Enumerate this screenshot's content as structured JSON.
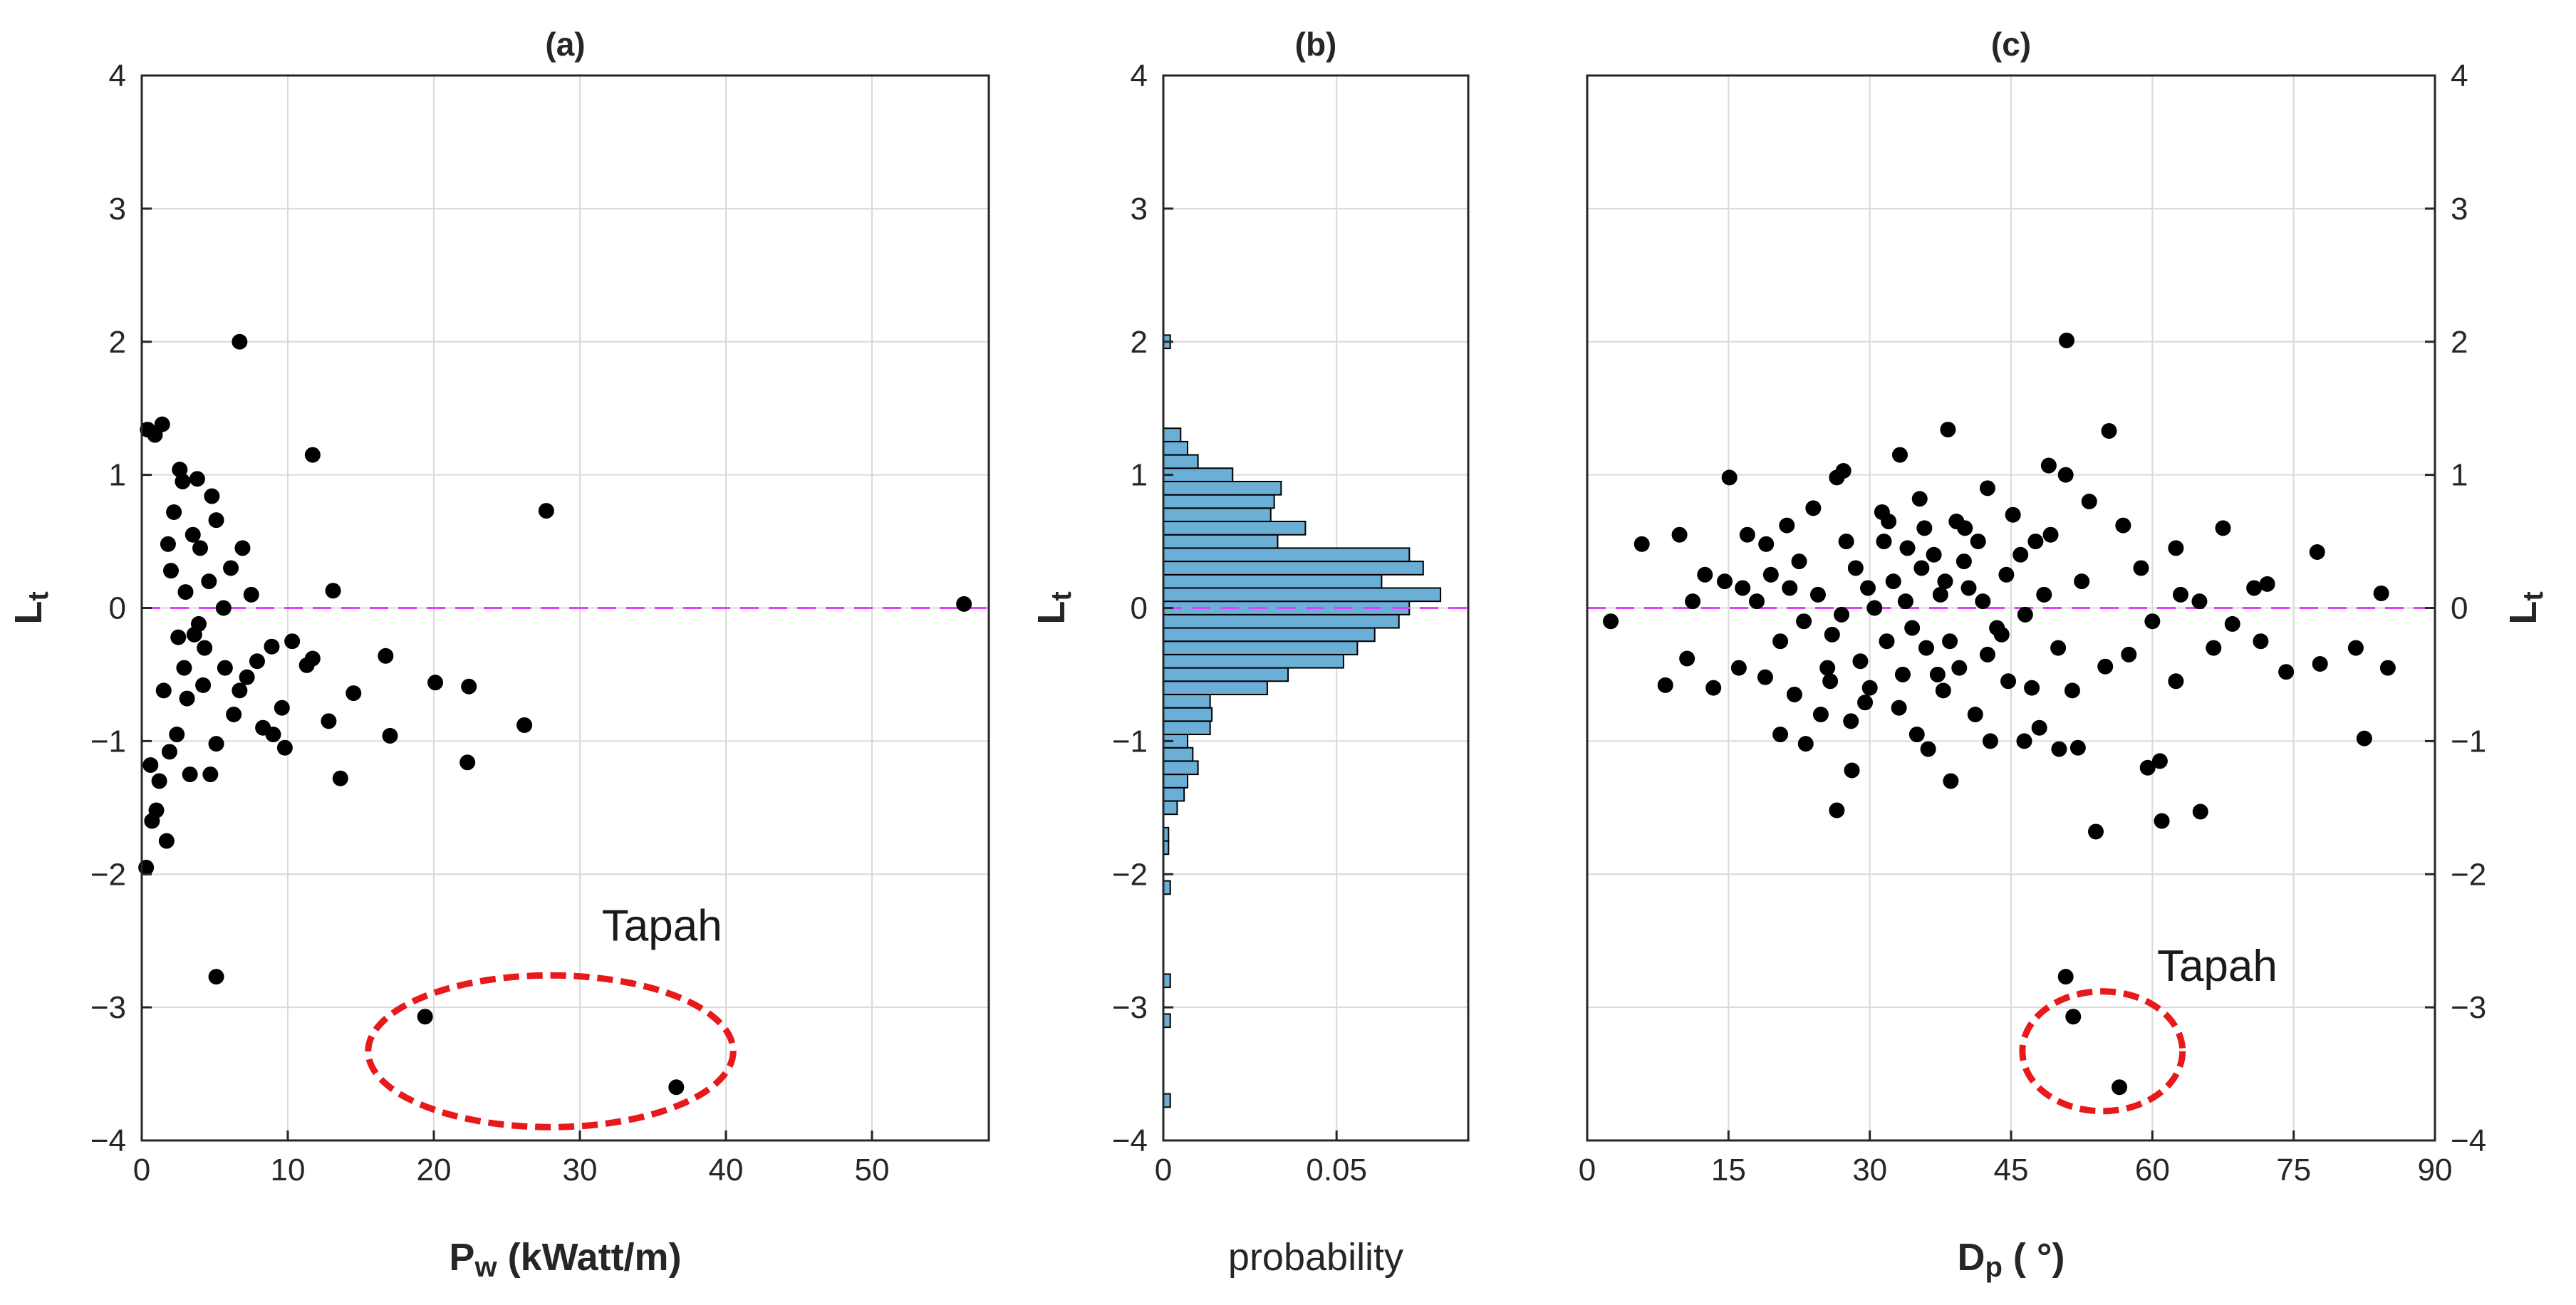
{
  "chart_data": [
    {
      "type": "scatter",
      "title": "(a)",
      "xlabel_main": "P",
      "xlabel_sub": "w",
      "xlabel_rest": " (kWatt/m)",
      "ylabel_main": "L",
      "ylabel_sub": "t",
      "xlim": [
        0,
        58
      ],
      "ylim": [
        -4,
        4
      ],
      "xticks": [
        0,
        10,
        20,
        30,
        40,
        50
      ],
      "yticks": [
        -4,
        -3,
        -2,
        -1,
        0,
        1,
        2,
        3,
        4
      ],
      "grid": true,
      "reference_line": {
        "y": 0,
        "color": "#e040fb",
        "style": "dashed"
      },
      "annotation": {
        "text": "Tapah",
        "x": 31.5,
        "y": -2.5,
        "ellipse_center": [
          28,
          -3.33
        ],
        "ellipse_radius": [
          12.5,
          0.57
        ],
        "color": "#e8191b"
      },
      "points": [
        [
          6.7,
          2.0
        ],
        [
          11.7,
          1.15
        ],
        [
          27.7,
          0.73
        ],
        [
          56.3,
          0.03
        ],
        [
          13.1,
          0.13
        ],
        [
          7.5,
          0.1
        ],
        [
          10.3,
          -0.25
        ],
        [
          8.9,
          -0.29
        ],
        [
          11.7,
          -0.38
        ],
        [
          11.3,
          -0.43
        ],
        [
          16.7,
          -0.36
        ],
        [
          20.1,
          -0.56
        ],
        [
          22.4,
          -0.59
        ],
        [
          14.5,
          -0.64
        ],
        [
          12.8,
          -0.85
        ],
        [
          26.2,
          -0.88
        ],
        [
          9.0,
          -0.95
        ],
        [
          9.6,
          -0.75
        ],
        [
          9.8,
          -1.05
        ],
        [
          17.0,
          -0.96
        ],
        [
          13.6,
          -1.28
        ],
        [
          22.3,
          -1.16
        ],
        [
          5.1,
          -2.77
        ],
        [
          19.4,
          -3.07
        ],
        [
          36.6,
          -3.6
        ],
        [
          0.3,
          -1.95
        ],
        [
          0.7,
          -1.6
        ],
        [
          1.7,
          -1.75
        ],
        [
          1.2,
          -1.3
        ],
        [
          3.3,
          -1.25
        ],
        [
          4.7,
          -1.25
        ],
        [
          5.1,
          -1.02
        ],
        [
          6.3,
          -0.8
        ],
        [
          7.2,
          -0.52
        ],
        [
          5.7,
          -0.45
        ],
        [
          4.3,
          -0.3
        ],
        [
          3.9,
          -0.12
        ],
        [
          6.1,
          0.3
        ],
        [
          5.1,
          0.66
        ],
        [
          4.8,
          0.84
        ],
        [
          3.8,
          0.97
        ],
        [
          2.6,
          1.04
        ],
        [
          1.4,
          1.38
        ],
        [
          0.4,
          1.34
        ],
        [
          0.9,
          1.3
        ],
        [
          6.9,
          0.45
        ],
        [
          8.3,
          -0.9
        ],
        [
          3.1,
          -0.68
        ],
        [
          1.9,
          -1.08
        ],
        [
          2.4,
          -0.95
        ],
        [
          4.2,
          -0.58
        ],
        [
          6.7,
          -0.62
        ],
        [
          7.9,
          -0.4
        ],
        [
          5.6,
          0.0
        ],
        [
          4.6,
          0.2
        ],
        [
          3.5,
          0.55
        ],
        [
          2.2,
          0.72
        ],
        [
          2.9,
          -0.45
        ],
        [
          3.6,
          -0.2
        ],
        [
          2.0,
          0.28
        ],
        [
          1.5,
          -0.62
        ],
        [
          2.8,
          0.95
        ],
        [
          1.0,
          -1.52
        ],
        [
          0.6,
          -1.18
        ],
        [
          4.0,
          0.45
        ],
        [
          3.0,
          0.12
        ],
        [
          2.5,
          -0.22
        ],
        [
          1.8,
          0.48
        ]
      ]
    },
    {
      "type": "histogram",
      "orientation": "horizontal",
      "title": "(b)",
      "xlabel": "probability",
      "ylabel_main": "L",
      "ylabel_sub": "t",
      "xlim": [
        0,
        0.088
      ],
      "ylim": [
        -4,
        4
      ],
      "xticks": [
        0,
        0.05
      ],
      "xtick_labels": [
        "0",
        "0.05"
      ],
      "yticks": [
        -4,
        -3,
        -2,
        -1,
        0,
        1,
        2,
        3,
        4
      ],
      "grid": true,
      "bin_width": 0.1,
      "bar_color": "#6baed6",
      "reference_line": {
        "y": 0,
        "color": "#e040fb",
        "style": "dashed"
      },
      "bins": [
        [
          -3.7,
          0.002
        ],
        [
          -3.1,
          0.002
        ],
        [
          -2.8,
          0.002
        ],
        [
          -2.1,
          0.002
        ],
        [
          -1.8,
          0.0015
        ],
        [
          -1.7,
          0.0015
        ],
        [
          -1.5,
          0.004
        ],
        [
          -1.4,
          0.006
        ],
        [
          -1.3,
          0.007
        ],
        [
          -1.2,
          0.01
        ],
        [
          -1.1,
          0.0085
        ],
        [
          -1.0,
          0.007
        ],
        [
          -0.9,
          0.0135
        ],
        [
          -0.8,
          0.014
        ],
        [
          -0.7,
          0.0135
        ],
        [
          -0.6,
          0.03
        ],
        [
          -0.5,
          0.036
        ],
        [
          -0.4,
          0.052
        ],
        [
          -0.3,
          0.056
        ],
        [
          -0.2,
          0.061
        ],
        [
          -0.1,
          0.068
        ],
        [
          0.0,
          0.071
        ],
        [
          0.1,
          0.08
        ],
        [
          0.2,
          0.063
        ],
        [
          0.3,
          0.075
        ],
        [
          0.4,
          0.071
        ],
        [
          0.5,
          0.033
        ],
        [
          0.6,
          0.041
        ],
        [
          0.7,
          0.031
        ],
        [
          0.8,
          0.032
        ],
        [
          0.9,
          0.034
        ],
        [
          1.0,
          0.02
        ],
        [
          1.1,
          0.01
        ],
        [
          1.2,
          0.007
        ],
        [
          1.3,
          0.005
        ],
        [
          2.0,
          0.002
        ]
      ]
    },
    {
      "type": "scatter",
      "title": "(c)",
      "xlabel_main": "D",
      "xlabel_sub": "p",
      "xlabel_rest": " ( °)",
      "ylabel_main": "L",
      "ylabel_sub": "t",
      "xlim": [
        0,
        90
      ],
      "ylim": [
        -4,
        4
      ],
      "xticks": [
        0,
        15,
        30,
        45,
        60,
        75,
        90
      ],
      "yticks": [
        -4,
        -3,
        -2,
        -1,
        0,
        1,
        2,
        3,
        4
      ],
      "yaxis_side": "right",
      "grid": true,
      "reference_line": {
        "y": 0,
        "color": "#e040fb",
        "style": "dashed"
      },
      "annotation": {
        "text": "Tapah",
        "x": 60.5,
        "y": -2.8,
        "ellipse_center": [
          54.7,
          -3.33
        ],
        "ellipse_radius": [
          8.5,
          0.45
        ],
        "color": "#e8191b"
      },
      "points": [
        [
          50.9,
          2.01
        ],
        [
          38.3,
          1.34
        ],
        [
          55.4,
          1.33
        ],
        [
          15.1,
          0.98
        ],
        [
          27.2,
          1.03
        ],
        [
          49.0,
          1.07
        ],
        [
          50.8,
          1.0
        ],
        [
          26.5,
          0.98
        ],
        [
          33.2,
          1.15
        ],
        [
          67.5,
          0.6
        ],
        [
          62.5,
          0.45
        ],
        [
          77.5,
          0.42
        ],
        [
          72.2,
          0.18
        ],
        [
          74.2,
          -0.48
        ],
        [
          77.8,
          -0.42
        ],
        [
          82.5,
          -0.98
        ],
        [
          84.3,
          0.11
        ],
        [
          85.0,
          -0.45
        ],
        [
          81.6,
          -0.3
        ],
        [
          71.5,
          -0.25
        ],
        [
          62.5,
          -0.55
        ],
        [
          60.8,
          -1.15
        ],
        [
          59.5,
          -1.2
        ],
        [
          61.0,
          -1.6
        ],
        [
          65.1,
          -1.53
        ],
        [
          54.0,
          -1.68
        ],
        [
          52.1,
          -1.05
        ],
        [
          50.1,
          -1.06
        ],
        [
          46.4,
          -1.0
        ],
        [
          38.6,
          -1.3
        ],
        [
          36.2,
          -1.06
        ],
        [
          28.1,
          -1.22
        ],
        [
          26.5,
          -1.52
        ],
        [
          23.2,
          -1.02
        ],
        [
          20.5,
          -0.95
        ],
        [
          13.4,
          -0.6
        ],
        [
          8.3,
          -0.58
        ],
        [
          2.5,
          -0.1
        ],
        [
          5.8,
          0.48
        ],
        [
          9.8,
          0.55
        ],
        [
          12.5,
          0.25
        ],
        [
          56.9,
          0.62
        ],
        [
          58.8,
          0.3
        ],
        [
          53.3,
          0.8
        ],
        [
          47.6,
          0.5
        ],
        [
          42.5,
          0.9
        ],
        [
          40.1,
          0.6
        ],
        [
          35.3,
          0.82
        ],
        [
          31.3,
          0.72
        ],
        [
          24.0,
          0.75
        ],
        [
          21.2,
          0.62
        ],
        [
          19.0,
          0.48
        ],
        [
          17.0,
          0.55
        ],
        [
          14.6,
          0.2
        ],
        [
          11.2,
          0.05
        ],
        [
          10.6,
          -0.38
        ],
        [
          16.1,
          -0.45
        ],
        [
          18.9,
          -0.52
        ],
        [
          22.0,
          -0.65
        ],
        [
          25.8,
          -0.55
        ],
        [
          29.5,
          -0.71
        ],
        [
          33.1,
          -0.75
        ],
        [
          35.0,
          -0.95
        ],
        [
          37.8,
          -0.62
        ],
        [
          41.2,
          -0.8
        ],
        [
          44.7,
          -0.55
        ],
        [
          48.0,
          -0.9
        ],
        [
          51.5,
          -0.62
        ],
        [
          55.0,
          -0.44
        ],
        [
          57.5,
          -0.35
        ],
        [
          60.0,
          -0.1
        ],
        [
          63.0,
          0.1
        ],
        [
          65.0,
          0.05
        ],
        [
          68.5,
          -0.12
        ],
        [
          70.8,
          0.15
        ],
        [
          66.5,
          -0.3
        ],
        [
          30.5,
          0.0
        ],
        [
          32.5,
          0.2
        ],
        [
          34.5,
          -0.15
        ],
        [
          28.5,
          0.3
        ],
        [
          26.0,
          -0.2
        ],
        [
          36.8,
          0.4
        ],
        [
          38.5,
          -0.25
        ],
        [
          40.5,
          0.15
        ],
        [
          42.5,
          -0.35
        ],
        [
          44.5,
          0.25
        ],
        [
          46.5,
          -0.05
        ],
        [
          24.5,
          0.1
        ],
        [
          22.5,
          0.35
        ],
        [
          20.5,
          -0.25
        ],
        [
          18.0,
          0.05
        ],
        [
          29.0,
          -0.4
        ],
        [
          31.5,
          0.5
        ],
        [
          33.5,
          -0.5
        ],
        [
          35.5,
          0.3
        ],
        [
          37.5,
          0.1
        ],
        [
          39.5,
          -0.45
        ],
        [
          41.5,
          0.5
        ],
        [
          43.5,
          -0.15
        ],
        [
          27.5,
          0.5
        ],
        [
          25.5,
          -0.45
        ],
        [
          23.0,
          -0.1
        ],
        [
          21.5,
          0.15
        ],
        [
          30.0,
          -0.6
        ],
        [
          32.0,
          0.65
        ],
        [
          34.0,
          0.45
        ],
        [
          36.0,
          -0.3
        ],
        [
          38.0,
          0.2
        ],
        [
          40.0,
          0.35
        ],
        [
          42.0,
          0.05
        ],
        [
          44.0,
          -0.2
        ],
        [
          46.0,
          0.4
        ],
        [
          48.5,
          0.1
        ],
        [
          50.0,
          -0.3
        ],
        [
          52.5,
          0.2
        ],
        [
          27.0,
          -0.05
        ],
        [
          29.8,
          0.15
        ],
        [
          31.8,
          -0.25
        ],
        [
          33.8,
          0.05
        ],
        [
          35.8,
          0.6
        ],
        [
          37.2,
          -0.5
        ],
        [
          39.2,
          0.65
        ],
        [
          45.2,
          0.7
        ],
        [
          47.2,
          -0.6
        ],
        [
          49.2,
          0.55
        ],
        [
          28.0,
          -0.85
        ],
        [
          24.8,
          -0.8
        ],
        [
          42.8,
          -1.0
        ],
        [
          19.5,
          0.25
        ],
        [
          16.5,
          0.15
        ],
        [
          50.8,
          -2.77
        ],
        [
          51.6,
          -3.07
        ],
        [
          56.5,
          -3.6
        ]
      ]
    }
  ]
}
